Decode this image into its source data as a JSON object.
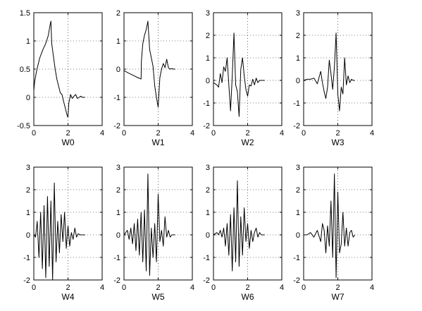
{
  "chart_data": [
    {
      "type": "line",
      "xlabel": "W0",
      "xlim": [
        0,
        4
      ],
      "ylim": [
        -0.5,
        1.5
      ],
      "xticks": [
        0,
        2,
        4
      ],
      "yticks": [
        -0.5,
        0,
        0.5,
        1,
        1.5
      ],
      "xtick_labels": [
        "0",
        "2",
        "4"
      ],
      "ytick_labels": [
        "-0.5",
        "0",
        "0.5",
        "1",
        "1.5"
      ],
      "grid": true,
      "x": [
        0,
        0.05,
        0.15,
        0.25,
        0.35,
        0.45,
        0.55,
        0.65,
        0.75,
        0.85,
        0.95,
        1.0,
        1.05,
        1.15,
        1.25,
        1.35,
        1.45,
        1.55,
        1.65,
        1.75,
        1.85,
        1.95,
        2.0,
        2.05,
        2.15,
        2.25,
        2.35,
        2.45,
        2.55,
        2.65,
        2.75,
        2.85,
        2.95,
        3.0
      ],
      "y": [
        0.12,
        0.28,
        0.45,
        0.58,
        0.7,
        0.78,
        0.86,
        0.92,
        1.0,
        1.1,
        1.28,
        1.35,
        0.95,
        0.72,
        0.5,
        0.32,
        0.2,
        0.08,
        0.05,
        -0.08,
        -0.2,
        -0.32,
        -0.35,
        -0.1,
        0.05,
        -0.02,
        0.02,
        0.05,
        -0.02,
        0.0,
        0.02,
        0.0,
        0.0,
        0.0
      ]
    },
    {
      "type": "line",
      "xlabel": "W1",
      "xlim": [
        0,
        4
      ],
      "ylim": [
        -2,
        2
      ],
      "xticks": [
        0,
        2,
        4
      ],
      "yticks": [
        -2,
        -1,
        0,
        1,
        2
      ],
      "xtick_labels": [
        "0",
        "2",
        "4"
      ],
      "ytick_labels": [
        "-2",
        "-1",
        "0",
        "1",
        "2"
      ],
      "grid": true,
      "x": [
        0,
        0.2,
        0.4,
        0.6,
        0.8,
        1.0,
        1.02,
        1.1,
        1.2,
        1.3,
        1.4,
        1.5,
        1.6,
        1.7,
        1.8,
        1.9,
        2.0,
        2.1,
        2.2,
        2.3,
        2.4,
        2.5,
        2.6,
        2.7,
        2.8,
        2.9,
        3.0
      ],
      "y": [
        -0.05,
        -0.12,
        -0.18,
        -0.24,
        -0.3,
        -0.35,
        0.3,
        0.9,
        1.2,
        1.4,
        1.7,
        0.7,
        0.4,
        0.1,
        -0.6,
        -1.0,
        -1.35,
        -0.3,
        0.0,
        0.2,
        0.05,
        0.35,
        0.05,
        0.0,
        0.02,
        0.0,
        0.0
      ]
    },
    {
      "type": "line",
      "xlabel": "W2",
      "xlim": [
        0,
        4
      ],
      "ylim": [
        -2,
        3
      ],
      "xticks": [
        0,
        2,
        4
      ],
      "yticks": [
        -2,
        -1,
        0,
        1,
        2,
        3
      ],
      "xtick_labels": [
        "0",
        "2",
        "4"
      ],
      "ytick_labels": [
        "-2",
        "-1",
        "0",
        "1",
        "2",
        "3"
      ],
      "grid": true,
      "x": [
        0,
        0.2,
        0.3,
        0.4,
        0.5,
        0.6,
        0.7,
        0.8,
        0.9,
        1.0,
        1.1,
        1.2,
        1.3,
        1.4,
        1.5,
        1.6,
        1.7,
        1.8,
        1.9,
        2.0,
        2.1,
        2.2,
        2.3,
        2.4,
        2.5,
        2.6,
        2.7,
        2.8,
        3.0
      ],
      "y": [
        -0.1,
        -0.2,
        -0.3,
        0.3,
        -0.1,
        0.6,
        0.4,
        1.0,
        -0.2,
        -1.35,
        0.2,
        2.1,
        -0.2,
        -0.5,
        -1.6,
        0.5,
        1.0,
        0.2,
        -0.4,
        -0.7,
        -0.2,
        -0.25,
        0.05,
        -0.2,
        0.1,
        -0.1,
        0.0,
        0.0,
        0.0
      ]
    },
    {
      "type": "line",
      "xlabel": "W3",
      "xlim": [
        0,
        4
      ],
      "ylim": [
        -2,
        3
      ],
      "xticks": [
        0,
        2,
        4
      ],
      "yticks": [
        -2,
        -1,
        0,
        1,
        2,
        3
      ],
      "xtick_labels": [
        "0",
        "2",
        "4"
      ],
      "ytick_labels": [
        "-2",
        "-1",
        "0",
        "1",
        "2",
        "3"
      ],
      "grid": true,
      "x": [
        0,
        0.2,
        0.4,
        0.6,
        0.8,
        1.0,
        1.1,
        1.2,
        1.3,
        1.4,
        1.5,
        1.6,
        1.7,
        1.8,
        1.9,
        2.0,
        2.1,
        2.2,
        2.3,
        2.4,
        2.5,
        2.6,
        2.7,
        2.8,
        2.9,
        3.0
      ],
      "y": [
        0.0,
        0.05,
        0.05,
        0.1,
        -0.15,
        0.4,
        -0.1,
        -0.5,
        -0.8,
        -0.3,
        0.9,
        0.3,
        -0.4,
        0.6,
        2.1,
        -0.6,
        -1.35,
        -0.3,
        -0.6,
        1.0,
        -0.2,
        0.2,
        -0.1,
        0.05,
        0.0,
        0.0
      ]
    },
    {
      "type": "line",
      "xlabel": "W4",
      "xlim": [
        0,
        4
      ],
      "ylim": [
        -2,
        3
      ],
      "xticks": [
        0,
        2,
        4
      ],
      "yticks": [
        -2,
        -1,
        0,
        1,
        2,
        3
      ],
      "xtick_labels": [
        "0",
        "2",
        "4"
      ],
      "ytick_labels": [
        "-2",
        "-1",
        "0",
        "1",
        "2",
        "3"
      ],
      "grid": true,
      "x": [
        0,
        0.1,
        0.2,
        0.3,
        0.4,
        0.5,
        0.6,
        0.7,
        0.8,
        0.9,
        1.0,
        1.1,
        1.2,
        1.3,
        1.4,
        1.5,
        1.6,
        1.7,
        1.8,
        1.9,
        2.0,
        2.1,
        2.2,
        2.3,
        2.4,
        2.5,
        2.6,
        2.7,
        2.8,
        3.0
      ],
      "y": [
        0.0,
        -0.1,
        0.6,
        -1.0,
        1.0,
        -1.5,
        1.3,
        -1.9,
        1.7,
        -1.4,
        1.5,
        -2.0,
        2.3,
        -1.2,
        0.6,
        -0.8,
        0.9,
        -0.3,
        1.0,
        -0.6,
        0.4,
        -0.5,
        0.1,
        -0.2,
        0.3,
        -0.1,
        0.05,
        0.0,
        0.0,
        0.0
      ]
    },
    {
      "type": "line",
      "xlabel": "W5",
      "xlim": [
        0,
        4
      ],
      "ylim": [
        -2,
        3
      ],
      "xticks": [
        0,
        2,
        4
      ],
      "yticks": [
        -2,
        -1,
        0,
        1,
        2,
        3
      ],
      "xtick_labels": [
        "0",
        "2",
        "4"
      ],
      "ytick_labels": [
        "-2",
        "-1",
        "0",
        "1",
        "2",
        "3"
      ],
      "grid": true,
      "x": [
        0,
        0.2,
        0.3,
        0.4,
        0.5,
        0.6,
        0.7,
        0.8,
        0.9,
        1.0,
        1.1,
        1.2,
        1.3,
        1.4,
        1.5,
        1.6,
        1.7,
        1.8,
        1.9,
        2.0,
        2.1,
        2.2,
        2.3,
        2.4,
        2.5,
        2.6,
        2.7,
        2.8,
        3.0
      ],
      "y": [
        0.0,
        0.2,
        -0.2,
        0.3,
        -0.4,
        0.5,
        -0.7,
        0.7,
        -0.9,
        1.0,
        -1.2,
        1.1,
        -1.6,
        2.7,
        -1.8,
        0.3,
        -1.0,
        0.5,
        -1.2,
        1.8,
        -0.3,
        0.2,
        -0.5,
        0.8,
        -0.1,
        0.2,
        -0.1,
        0.0,
        0.0
      ]
    },
    {
      "type": "line",
      "xlabel": "W6",
      "xlim": [
        0,
        4
      ],
      "ylim": [
        -2,
        3
      ],
      "xticks": [
        0,
        2,
        4
      ],
      "yticks": [
        -2,
        -1,
        0,
        1,
        2,
        3
      ],
      "xtick_labels": [
        "0",
        "2",
        "4"
      ],
      "ytick_labels": [
        "-2",
        "-1",
        "0",
        "1",
        "2",
        "3"
      ],
      "grid": true,
      "x": [
        0,
        0.2,
        0.3,
        0.4,
        0.5,
        0.6,
        0.7,
        0.8,
        0.9,
        1.0,
        1.1,
        1.2,
        1.3,
        1.4,
        1.5,
        1.6,
        1.7,
        1.8,
        1.9,
        2.0,
        2.1,
        2.2,
        2.3,
        2.4,
        2.5,
        2.6,
        2.7,
        2.8,
        3.0
      ],
      "y": [
        0.0,
        0.1,
        0.0,
        0.2,
        -0.1,
        0.3,
        -0.5,
        0.5,
        -0.9,
        0.9,
        -1.6,
        1.2,
        -1.2,
        2.4,
        -1.4,
        0.8,
        -0.9,
        1.2,
        -0.3,
        0.5,
        -0.6,
        0.2,
        -0.3,
        0.1,
        0.3,
        -0.1,
        0.1,
        0.0,
        0.0
      ]
    },
    {
      "type": "line",
      "xlabel": "W7",
      "xlim": [
        0,
        4
      ],
      "ylim": [
        -2,
        3
      ],
      "xticks": [
        0,
        2,
        4
      ],
      "yticks": [
        -2,
        -1,
        0,
        1,
        2,
        3
      ],
      "xtick_labels": [
        "0",
        "2",
        "4"
      ],
      "ytick_labels": [
        "-2",
        "-1",
        "0",
        "1",
        "2",
        "3"
      ],
      "grid": true,
      "x": [
        0,
        0.2,
        0.4,
        0.6,
        0.8,
        1.0,
        1.1,
        1.2,
        1.3,
        1.4,
        1.5,
        1.6,
        1.7,
        1.8,
        1.9,
        2.0,
        2.1,
        2.2,
        2.3,
        2.4,
        2.5,
        2.6,
        2.7,
        2.8,
        2.9,
        3.0
      ],
      "y": [
        0.0,
        0.0,
        0.1,
        -0.1,
        0.2,
        -0.3,
        0.5,
        0.2,
        -0.8,
        0.4,
        -0.5,
        1.5,
        -1.0,
        2.7,
        -1.9,
        1.9,
        -0.8,
        -0.4,
        1.0,
        -0.5,
        0.3,
        -0.5,
        0.1,
        0.2,
        -0.1,
        0.0
      ]
    }
  ]
}
